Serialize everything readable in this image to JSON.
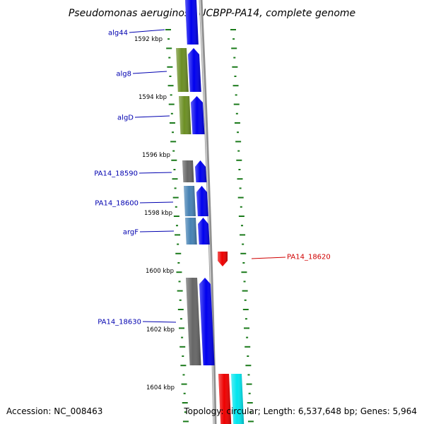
{
  "title": "Pseudomonas aeruginosa UCBPP-PA14, complete genome",
  "footer": {
    "accession": "Accession: NC_008463",
    "summary": "Topology: circular; Length: 6,537,648 bp; Genes: 5,964"
  },
  "colors": {
    "label_left": "#0000b0",
    "label_right": "#d00000",
    "tick": "#1a7a1a",
    "backbone": "#909090"
  },
  "scale_labels": [
    "1592 kbp",
    "1594 kbp",
    "1596 kbp",
    "1598 kbp",
    "1600 kbp",
    "1602 kbp",
    "1604 kbp"
  ],
  "gene_labels": [
    {
      "text": "alg44",
      "side": "left"
    },
    {
      "text": "alg8",
      "side": "left"
    },
    {
      "text": "algD",
      "side": "left"
    },
    {
      "text": "PA14_18590",
      "side": "left"
    },
    {
      "text": "PA14_18600",
      "side": "left"
    },
    {
      "text": "argF",
      "side": "left"
    },
    {
      "text": "PA14_18620",
      "side": "right"
    },
    {
      "text": "PA14_18630",
      "side": "left"
    }
  ],
  "features": [
    {
      "name": "alg44-cds",
      "color": "#0000ee",
      "strand": "forward"
    },
    {
      "name": "alg8-cog",
      "color": "#6b8e23",
      "strand": "forward"
    },
    {
      "name": "alg8-cds",
      "color": "#0000ee",
      "strand": "forward"
    },
    {
      "name": "algD-cog",
      "color": "#6b8e23",
      "strand": "forward"
    },
    {
      "name": "algD-cds",
      "color": "#0000ee",
      "strand": "forward"
    },
    {
      "name": "PA14_18590-cog",
      "color": "#666666",
      "strand": "forward"
    },
    {
      "name": "PA14_18590-cds",
      "color": "#0000ee",
      "strand": "forward"
    },
    {
      "name": "PA14_18600-cog",
      "color": "#4682b4",
      "strand": "forward"
    },
    {
      "name": "PA14_18600-cds",
      "color": "#0000ee",
      "strand": "forward"
    },
    {
      "name": "argF-cog",
      "color": "#4682b4",
      "strand": "forward"
    },
    {
      "name": "argF-cds",
      "color": "#0000ee",
      "strand": "forward"
    },
    {
      "name": "PA14_18620-cds",
      "color": "#ee0000",
      "strand": "reverse"
    },
    {
      "name": "PA14_18630-cog",
      "color": "#666666",
      "strand": "forward"
    },
    {
      "name": "PA14_18630-cds",
      "color": "#0000ee",
      "strand": "forward"
    },
    {
      "name": "next-red-cds",
      "color": "#ee0000",
      "strand": "reverse"
    },
    {
      "name": "next-cyan-cog",
      "color": "#00e5ee",
      "strand": "reverse"
    }
  ]
}
